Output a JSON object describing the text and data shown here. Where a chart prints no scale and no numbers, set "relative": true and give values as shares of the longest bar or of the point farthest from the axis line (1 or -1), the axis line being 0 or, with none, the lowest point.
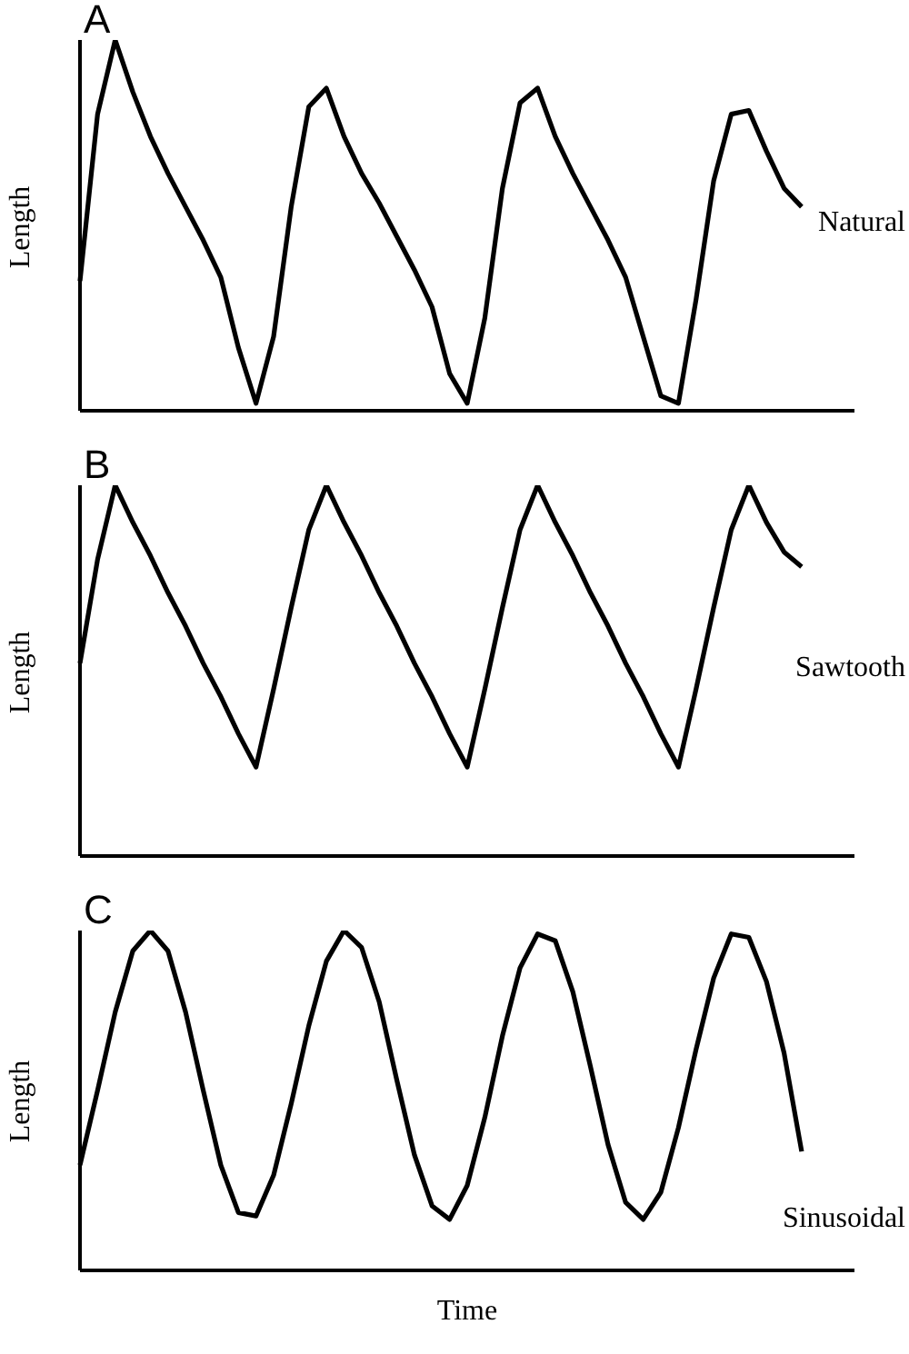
{
  "chart_data": [
    {
      "type": "line",
      "relative": true,
      "ylabel": "Length",
      "annotations": [
        "A",
        "Natural"
      ],
      "categories": [
        null,
        null,
        null,
        null,
        null,
        null,
        null,
        null,
        null,
        null,
        null,
        null,
        null,
        null,
        null,
        null,
        null,
        null,
        null,
        null,
        null,
        null,
        null,
        null,
        null,
        null,
        null,
        null,
        null,
        null,
        null,
        null,
        null,
        null,
        null,
        null,
        null,
        null,
        null,
        null,
        null,
        null,
        null,
        null,
        null
      ],
      "series": [
        {
          "color": "#000000",
          "values": [
            0.35,
            0.8,
            1,
            0.86,
            0.74,
            0.64,
            0.55,
            0.46,
            0.36,
            0.17,
            0.02,
            0.2,
            0.55,
            0.82,
            0.87,
            0.74,
            0.64,
            0.56,
            0.47,
            0.38,
            0.28,
            0.1,
            0.02,
            0.25,
            0.6,
            0.83,
            0.87,
            0.74,
            0.64,
            0.55,
            0.46,
            0.36,
            0.2,
            0.04,
            0.02,
            0.3,
            0.62,
            0.8,
            0.81,
            0.7,
            0.6,
            0.55,
            null,
            null,
            null
          ]
        }
      ]
    },
    {
      "type": "line",
      "relative": true,
      "ylabel": "Length",
      "annotations": [
        "B",
        "Sawtooth"
      ],
      "categories": [
        null,
        null,
        null,
        null,
        null,
        null,
        null,
        null,
        null,
        null,
        null,
        null,
        null,
        null,
        null,
        null,
        null,
        null,
        null,
        null,
        null,
        null,
        null,
        null,
        null,
        null,
        null,
        null,
        null,
        null,
        null,
        null,
        null,
        null,
        null,
        null,
        null,
        null,
        null,
        null,
        null,
        null,
        null,
        null,
        null
      ],
      "series": [
        {
          "color": "#000000",
          "values": [
            0.52,
            0.8,
            1,
            0.9,
            0.81,
            0.71,
            0.62,
            0.52,
            0.43,
            0.33,
            0.24,
            0.45,
            0.67,
            0.88,
            1,
            0.9,
            0.81,
            0.71,
            0.62,
            0.52,
            0.43,
            0.33,
            0.24,
            0.45,
            0.67,
            0.88,
            1,
            0.9,
            0.81,
            0.71,
            0.62,
            0.52,
            0.43,
            0.33,
            0.24,
            0.45,
            0.67,
            0.88,
            1,
            0.9,
            0.82,
            0.78,
            null,
            null,
            null
          ]
        }
      ]
    },
    {
      "type": "line",
      "relative": true,
      "ylabel": "Length",
      "xlabel": "Time",
      "annotations": [
        "C",
        "Sinusoidal"
      ],
      "categories": [
        null,
        null,
        null,
        null,
        null,
        null,
        null,
        null,
        null,
        null,
        null,
        null,
        null,
        null,
        null,
        null,
        null,
        null,
        null,
        null,
        null,
        null,
        null,
        null,
        null,
        null,
        null,
        null,
        null,
        null,
        null,
        null,
        null,
        null,
        null,
        null,
        null,
        null,
        null,
        null,
        null,
        null,
        null,
        null,
        null
      ],
      "series": [
        {
          "color": "#000000",
          "values": [
            0.31,
            0.53,
            0.76,
            0.94,
            1,
            0.94,
            0.76,
            0.53,
            0.31,
            0.17,
            0.16,
            0.28,
            0.49,
            0.72,
            0.91,
            1,
            0.95,
            0.79,
            0.56,
            0.34,
            0.19,
            0.15,
            0.25,
            0.45,
            0.69,
            0.89,
            0.99,
            0.97,
            0.82,
            0.6,
            0.37,
            0.2,
            0.15,
            0.23,
            0.42,
            0.65,
            0.86,
            0.99,
            0.98,
            0.85,
            0.64,
            0.35,
            null,
            null,
            null
          ]
        }
      ]
    }
  ]
}
